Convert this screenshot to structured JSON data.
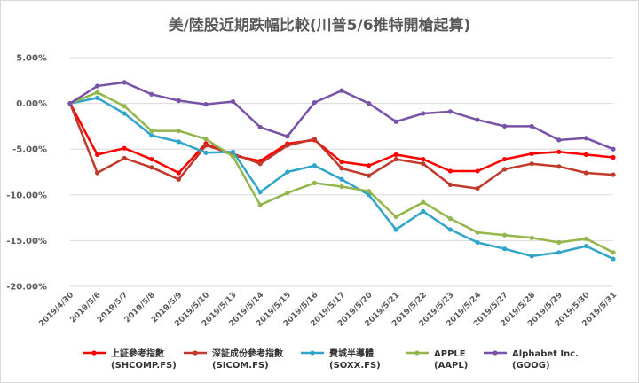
{
  "chart_data": {
    "type": "line",
    "title": "美/陸股近期跌幅比較(川普5/6推特開槍起算)",
    "xlabel": "",
    "ylabel": "",
    "ylim": [
      -20,
      5
    ],
    "yticks": [
      5,
      0,
      -5,
      -10,
      -15,
      -20
    ],
    "ytick_labels": [
      "5.00%",
      "0.00%",
      "-5.00%",
      "-10.00%",
      "-15.00%",
      "-20.00%"
    ],
    "grid": "horizontal",
    "legend_position": "bottom",
    "x": [
      "2019/4/30",
      "2019/5/6",
      "2019/5/7",
      "2019/5/8",
      "2019/5/9",
      "2019/5/10",
      "2019/5/13",
      "2019/5/14",
      "2019/5/15",
      "2019/5/16",
      "2019/5/17",
      "2019/5/20",
      "2019/5/21",
      "2019/5/22",
      "2019/5/23",
      "2019/5/24",
      "2019/5/27",
      "2019/5/28",
      "2019/5/29",
      "2019/5/30",
      "2019/5/31"
    ],
    "series": [
      {
        "name": "上証參考指數",
        "name_line2": "(SHCOMP.FS)",
        "color": "#ff0000",
        "values": [
          0,
          -5.6,
          -4.9,
          -6.1,
          -7.6,
          -4.4,
          -5.7,
          -6.3,
          -4.4,
          -4.0,
          -6.4,
          -6.8,
          -5.6,
          -6.1,
          -7.4,
          -7.4,
          -6.1,
          -5.5,
          -5.3,
          -5.6,
          -5.9
        ]
      },
      {
        "name": "深証成份參考指數",
        "name_line2": "(SICOM.FS)",
        "color": "#c0392b",
        "values": [
          0,
          -7.6,
          -6.0,
          -7.0,
          -8.3,
          -4.6,
          -5.5,
          -6.6,
          -4.6,
          -3.9,
          -7.1,
          -7.9,
          -6.1,
          -6.6,
          -8.9,
          -9.3,
          -7.2,
          -6.6,
          -6.9,
          -7.6,
          -7.8
        ]
      },
      {
        "name": "費城半導體",
        "name_line2": "(SOXX.FS)",
        "color": "#31a5c9",
        "values": [
          0,
          0.6,
          -1.1,
          -3.5,
          -4.2,
          -5.4,
          -5.3,
          -9.7,
          -7.5,
          -6.8,
          -8.3,
          -10.0,
          -13.8,
          -11.8,
          -13.8,
          -15.2,
          -15.9,
          -16.7,
          -16.3,
          -15.6,
          -17.0
        ]
      },
      {
        "name": "APPLE",
        "name_line2": "(AAPL)",
        "color": "#92b64a",
        "values": [
          0,
          1.2,
          -0.3,
          -3.0,
          -3.0,
          -3.9,
          -5.8,
          -11.1,
          -9.8,
          -8.7,
          -9.1,
          -9.6,
          -12.4,
          -10.8,
          -12.6,
          -14.1,
          -14.4,
          -14.7,
          -15.2,
          -14.8,
          -16.3
        ]
      },
      {
        "name": "Alphabet Inc.",
        "name_line2": "(GOOG)",
        "color": "#7851a9",
        "values": [
          0,
          1.9,
          2.3,
          1.0,
          0.3,
          -0.1,
          0.2,
          -2.6,
          -3.6,
          0.1,
          1.4,
          0.0,
          -2.0,
          -1.1,
          -0.9,
          -1.8,
          -2.5,
          -2.5,
          -4.0,
          -3.8,
          -5.0
        ]
      }
    ]
  }
}
